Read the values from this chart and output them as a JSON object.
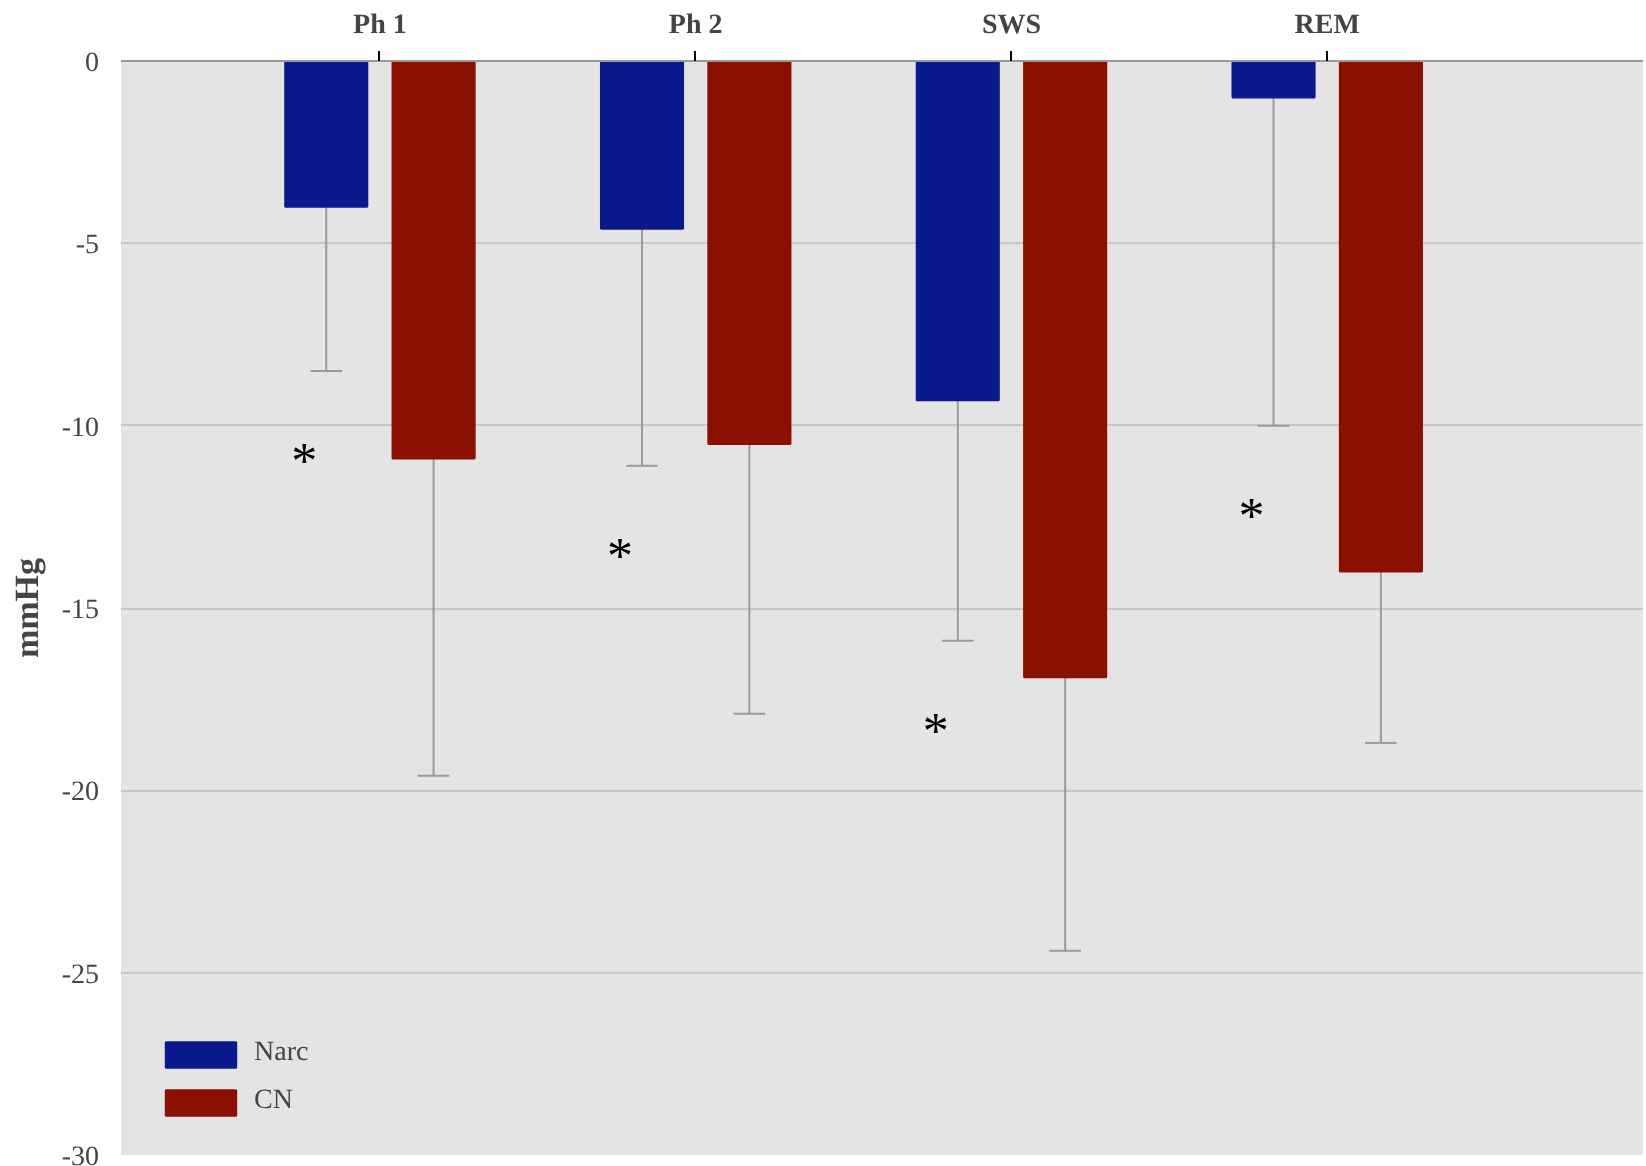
{
  "chart_data": {
    "type": "bar",
    "ylabel": "mmHg",
    "categories": [
      "Ph 1",
      "Ph 2",
      "SWS",
      "REM"
    ],
    "series": [
      {
        "name": "Narc",
        "color": "#0a1a8c",
        "values": [
          -4,
          -4.6,
          -9.3,
          -1
        ],
        "errors": [
          [
            -8.5,
            -4
          ],
          [
            -11.1,
            -4.6
          ],
          [
            -15.9,
            -9.3
          ],
          [
            -10,
            -1
          ]
        ]
      },
      {
        "name": "CN",
        "color": "#8b1000",
        "values": [
          -10.9,
          -10.5,
          -16.9,
          -14
        ],
        "errors": [
          [
            -19.6,
            -10.9
          ],
          [
            -17.9,
            -10.5
          ],
          [
            -24.4,
            -16.9
          ],
          [
            -18.7,
            -14
          ]
        ]
      }
    ],
    "ylim": [
      -30,
      0
    ],
    "yticks": [
      -30,
      -25,
      -20,
      -15,
      -10,
      -5,
      0
    ],
    "grid": "y",
    "legend": "bottom left",
    "annotations": [
      "*",
      "*",
      "*",
      "*"
    ]
  }
}
